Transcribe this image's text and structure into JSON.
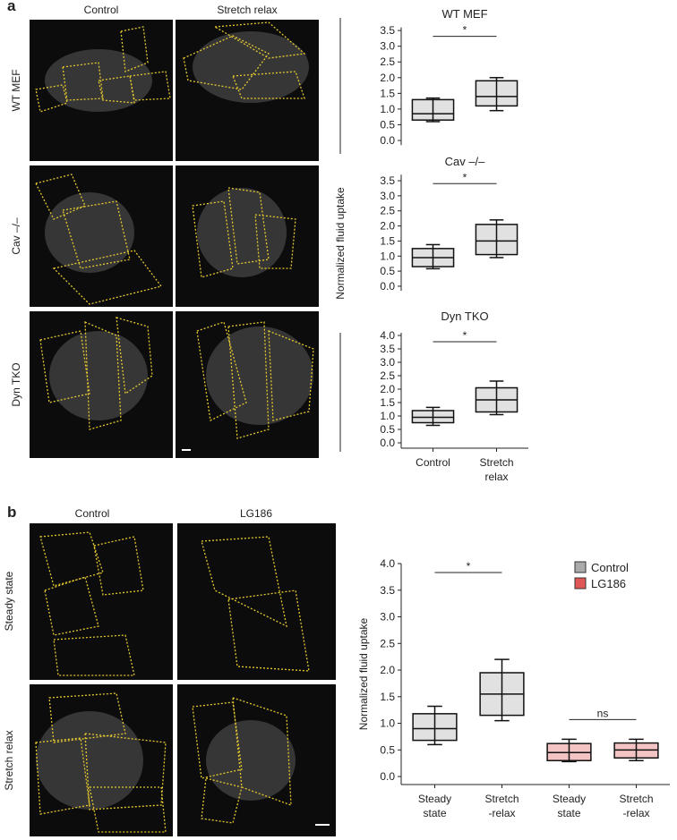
{
  "figure": {
    "panel_a": {
      "label": "a",
      "columns": [
        "Control",
        "Stretch relax"
      ],
      "rows": [
        "WT MEF",
        "Cav –/–",
        "Dyn TKO"
      ],
      "y_label": "Normalized fluid uptake"
    },
    "panel_b": {
      "label": "b",
      "columns": [
        "Control",
        "LG186"
      ],
      "rows": [
        "Steady state",
        "Stretch relax"
      ]
    }
  },
  "chart_data": [
    {
      "type": "box",
      "title": "WT MEF",
      "ylim": [
        -0.15,
        3.6
      ],
      "yticks": [
        {
          "value": 0,
          "label": "0.0"
        },
        {
          "value": 0.5,
          "label": "0.5"
        },
        {
          "value": 1,
          "label": "1.0"
        },
        {
          "value": 1.5,
          "label": "1.5"
        },
        {
          "value": 2,
          "label": "2.0"
        },
        {
          "value": 2.5,
          "label": "2.5"
        },
        {
          "value": 3,
          "label": "3.0"
        },
        {
          "value": 3.5,
          "label": "3.5"
        }
      ],
      "annotations": [
        "*"
      ],
      "series": [
        {
          "color": "#aaaaaa",
          "boxes": [
            {
              "whisker_low": 0.6,
              "q1": 0.65,
              "median": 0.85,
              "q3": 1.3,
              "whisker_high": 1.35
            },
            {
              "whisker_low": 0.95,
              "q1": 1.1,
              "median": 1.4,
              "q3": 1.9,
              "whisker_high": 2.0
            }
          ]
        }
      ]
    },
    {
      "type": "box",
      "title": "Cav –/–",
      "ylim": [
        -0.15,
        3.7
      ],
      "yticks": [
        {
          "value": 0,
          "label": "0.0"
        },
        {
          "value": 0.5,
          "label": "0.5"
        },
        {
          "value": 1,
          "label": "1.0"
        },
        {
          "value": 1.5,
          "label": "1.5"
        },
        {
          "value": 2,
          "label": "2.0"
        },
        {
          "value": 2.5,
          "label": "2.5"
        },
        {
          "value": 3,
          "label": "3.0"
        },
        {
          "value": 3.5,
          "label": "3.5"
        }
      ],
      "annotations": [
        "*"
      ],
      "series": [
        {
          "color": "#aaaaaa",
          "boxes": [
            {
              "whisker_low": 0.58,
              "q1": 0.65,
              "median": 0.95,
              "q3": 1.25,
              "whisker_high": 1.38
            },
            {
              "whisker_low": 0.95,
              "q1": 1.05,
              "median": 1.5,
              "q3": 2.05,
              "whisker_high": 2.2
            }
          ]
        }
      ]
    },
    {
      "type": "box",
      "title": "Dyn TKO",
      "ylim": [
        -0.2,
        4.1
      ],
      "categories": [
        "Control",
        "Stretch relax"
      ],
      "yticks": [
        {
          "value": 0,
          "label": "0.0"
        },
        {
          "value": 0.5,
          "label": "0.5"
        },
        {
          "value": 1,
          "label": "1.0"
        },
        {
          "value": 1.5,
          "label": "1.5"
        },
        {
          "value": 2,
          "label": "2.0"
        },
        {
          "value": 2.5,
          "label": "2.5"
        },
        {
          "value": 3,
          "label": "3.0"
        },
        {
          "value": 3.5,
          "label": "3.5"
        },
        {
          "value": 4,
          "label": "4.0"
        }
      ],
      "annotations": [
        "*"
      ],
      "series": [
        {
          "color": "#aaaaaa",
          "boxes": [
            {
              "whisker_low": 0.65,
              "q1": 0.75,
              "median": 0.95,
              "q3": 1.2,
              "whisker_high": 1.32
            },
            {
              "whisker_low": 1.05,
              "q1": 1.15,
              "median": 1.6,
              "q3": 2.05,
              "whisker_high": 2.3
            }
          ]
        }
      ]
    },
    {
      "type": "box",
      "y_label": "Normalized fluid uptake",
      "ylim": [
        -0.15,
        4.0
      ],
      "legend": "upper right",
      "categories": [
        "Steady state",
        "Stretch -relax",
        "Steady state",
        "Stretch -relax"
      ],
      "yticks": [
        {
          "value": 0,
          "label": "0.0"
        },
        {
          "value": 0.5,
          "label": "0.5"
        },
        {
          "value": 1,
          "label": "1.0"
        },
        {
          "value": 1.5,
          "label": "1.5"
        },
        {
          "value": 2,
          "label": "2.0"
        },
        {
          "value": 2.5,
          "label": "2.5"
        },
        {
          "value": 3,
          "label": "3.0"
        },
        {
          "value": 3.5,
          "label": "3.5"
        },
        {
          "value": 4,
          "label": "4.0"
        }
      ],
      "annotations": [
        "*",
        "ns"
      ],
      "series": [
        {
          "name": "Control",
          "color": "#aaaaaa",
          "boxes": [
            {
              "whisker_low": 0.6,
              "q1": 0.68,
              "median": 0.9,
              "q3": 1.18,
              "whisker_high": 1.32
            },
            {
              "whisker_low": 1.05,
              "q1": 1.15,
              "median": 1.55,
              "q3": 1.95,
              "whisker_high": 2.2
            },
            null,
            null
          ]
        },
        {
          "name": "LG186",
          "color": "#e05555",
          "boxes": [
            null,
            null,
            {
              "whisker_low": 0.28,
              "q1": 0.3,
              "median": 0.45,
              "q3": 0.62,
              "whisker_high": 0.7
            },
            {
              "whisker_low": 0.3,
              "q1": 0.35,
              "median": 0.5,
              "q3": 0.63,
              "whisker_high": 0.7
            }
          ]
        }
      ]
    }
  ]
}
